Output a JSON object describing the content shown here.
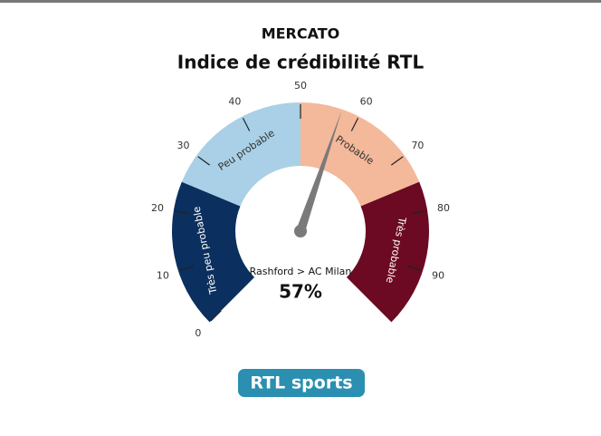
{
  "chart_data": {
    "type": "gauge",
    "kicker": "MERCATO",
    "title": "Indice de crédibilité RTL",
    "range": [
      0,
      100
    ],
    "ticks": [
      0,
      10,
      20,
      30,
      40,
      50,
      60,
      70,
      80,
      90
    ],
    "bands": [
      {
        "name": "Très peu probable",
        "from": 0,
        "to": 25,
        "color": "#0b2f5e",
        "text_color": "#ffffff"
      },
      {
        "name": "Peu probable",
        "from": 25,
        "to": 50,
        "color": "#a9d0e6",
        "text_color": "#333333"
      },
      {
        "name": "Probable",
        "from": 50,
        "to": 75,
        "color": "#f4b89a",
        "text_color": "#333333"
      },
      {
        "name": "Très probable",
        "from": 75,
        "to": 100,
        "color": "#6b0a22",
        "text_color": "#ffffff"
      }
    ],
    "value": 57,
    "value_label": "57%",
    "label": "Rashford > AC Milan"
  },
  "logo": "RTL sports"
}
